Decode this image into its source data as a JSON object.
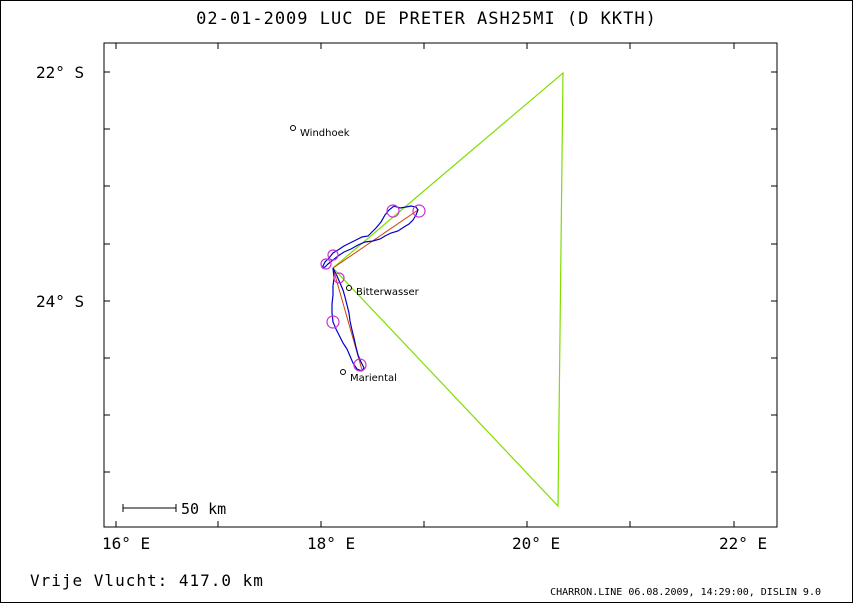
{
  "header": {
    "title": "02-01-2009   LUC DE PRETER   ASH25MI (D KKTH)"
  },
  "footer": {
    "distance_label": "Vrije Vlucht:  417.0 km",
    "software_info": "CHARRON.LINE 06.08.2009, 14:29:00, DISLIN 9.0"
  },
  "map": {
    "lat_labels": [
      {
        "text": "22° S",
        "lat": -22
      },
      {
        "text": "24° S",
        "lat": -24
      }
    ],
    "lon_labels": [
      {
        "text": "16° E",
        "lon": 16
      },
      {
        "text": "18° E",
        "lon": 18
      },
      {
        "text": "20° E",
        "lon": 20
      },
      {
        "text": "22° E",
        "lon": 22
      }
    ],
    "scale_label": "50 km",
    "places": [
      {
        "name": "Windhoek",
        "lon": 17.73,
        "lat": -22.49
      },
      {
        "name": "Bitterwasser",
        "lon": 18.27,
        "lat": -23.88
      },
      {
        "name": "Mariental",
        "lon": 18.22,
        "lat": -24.63
      }
    ],
    "colors": {
      "track": "#0000cc",
      "task": "#cc4400",
      "triangle": "#80dd00",
      "turnpoint": "#cc33cc"
    }
  }
}
